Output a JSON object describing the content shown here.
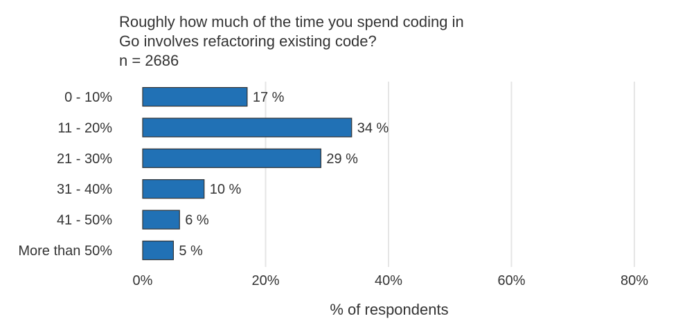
{
  "chart_data": {
    "type": "bar",
    "orientation": "horizontal",
    "title": [
      "Roughly how much of the time you spend coding in",
      "Go involves refactoring existing code?"
    ],
    "subtitle": "n = 2686",
    "categories": [
      "0 - 10%",
      "11 - 20%",
      "21 - 30%",
      "31 - 40%",
      "41 - 50%",
      "More than 50%"
    ],
    "values": [
      17,
      34,
      29,
      10,
      6,
      5
    ],
    "data_labels": [
      "17 %",
      "34 %",
      "29 %",
      "10 %",
      "6 %",
      "5 %"
    ],
    "xlabel": "% of respondents",
    "ylabel": "",
    "xlim": [
      0,
      80
    ],
    "xticks": [
      0,
      20,
      40,
      60,
      80
    ],
    "xtick_labels": [
      "0%",
      "20%",
      "40%",
      "60%",
      "80%"
    ],
    "grid": "vertical",
    "legend": "none",
    "bar_color": "#2171b5",
    "bar_edge_color": "#333333",
    "grid_color": "#e5e5e5"
  }
}
